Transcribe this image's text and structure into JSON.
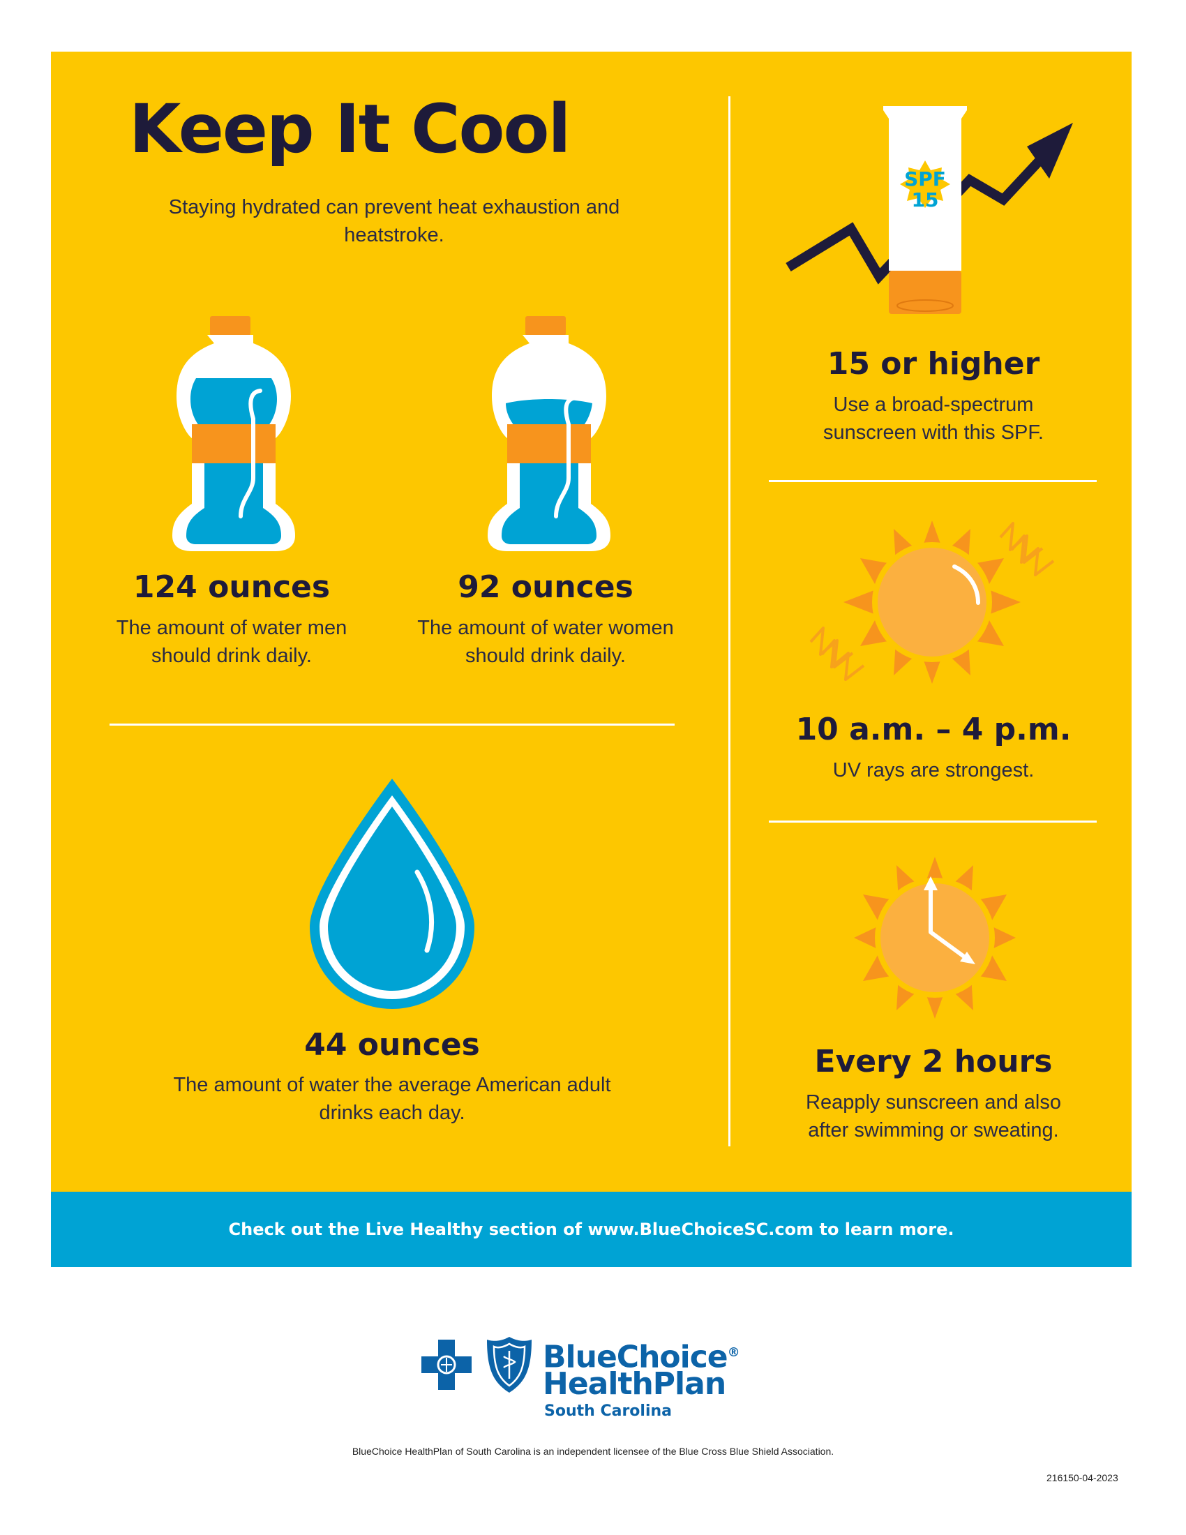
{
  "title": "Keep It Cool",
  "intro": "Staying hydrated can prevent heat exhaustion and heatstroke.",
  "water": {
    "men": {
      "stat": "124 ounces",
      "desc": "The amount of water men should drink daily."
    },
    "women": {
      "stat": "92 ounces",
      "desc": "The amount of water women should drink daily."
    },
    "average": {
      "stat": "44 ounces",
      "desc": "The amount of water the average American adult drinks each day."
    }
  },
  "sun": {
    "spf": {
      "badge_line1": "SPF",
      "badge_line2": "15",
      "stat": "15 or higher",
      "desc": "Use a broad-spectrum sunscreen with this SPF."
    },
    "uv": {
      "stat": "10 a.m. – 4 p.m.",
      "desc": "UV rays are strongest."
    },
    "reapply": {
      "stat": "Every 2 hours",
      "desc": "Reapply sunscreen and also after swimming or sweating."
    }
  },
  "banner": "Check out the Live Healthy section of www.BlueChoiceSC.com to learn more.",
  "logo": {
    "line1": "BlueChoice",
    "reg": "®",
    "line2": "HealthPlan",
    "line3": "South Carolina"
  },
  "disclaimer": "BlueChoice HealthPlan of South Carolina is an independent licensee of the Blue Cross Blue Shield Association.",
  "code": "216150-04-2023",
  "icons": [
    "water-bottle-icon",
    "water-drop-icon",
    "sunscreen-tube-icon",
    "trend-arrow-icon",
    "sun-icon",
    "clock-sun-icon",
    "blue-cross-icon",
    "blue-shield-icon"
  ],
  "colors": {
    "panel": "#fdc700",
    "banner": "#00a3d4",
    "text_dark": "#1e1b3a",
    "water_blue": "#00a3d4",
    "orange": "#f7941d",
    "sun_orange": "#f7a21b",
    "logo_blue": "#0c63a8"
  }
}
